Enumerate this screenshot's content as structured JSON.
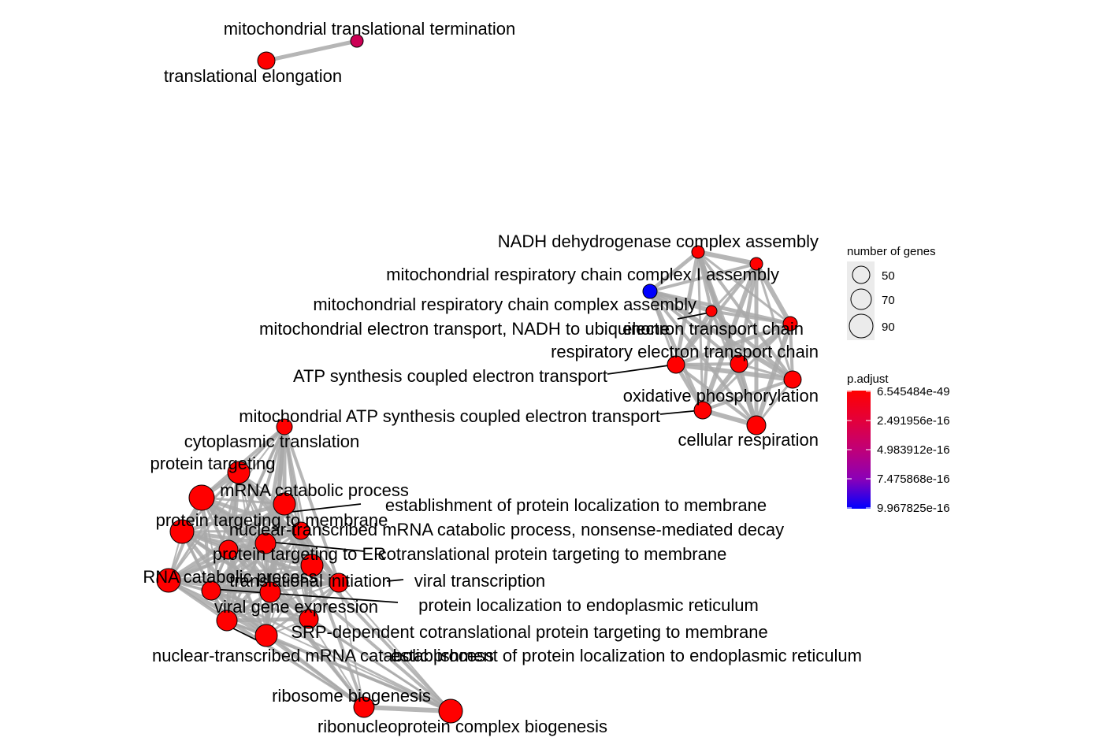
{
  "legend": {
    "size_title": "number of genes",
    "size_values": [
      "50",
      "70",
      "90"
    ],
    "color_title": "p.adjust",
    "color_ticks": [
      "6.545484e-49",
      "2.491956e-16",
      "4.983912e-16",
      "7.475868e-16",
      "9.967825e-16"
    ],
    "color_high": "#ff0000",
    "color_low": "#0000ff"
  },
  "edge_color": "#a9a9a9",
  "node_border": "#000000",
  "node_colors": {
    "red": "#ff0000",
    "purple": "#cc0055",
    "blue": "#0000ff"
  },
  "nodes": [
    {
      "id": "mt_term",
      "label": "mitochondrial translational termination",
      "color": "purple"
    },
    {
      "id": "trans_elong",
      "label": "translational elongation",
      "color": "red"
    },
    {
      "id": "nadh_deh",
      "label": "NADH dehydrogenase complex assembly",
      "color": "red"
    },
    {
      "id": "mrc_i",
      "label": "mitochondrial respiratory chain complex I assembly",
      "color": "red"
    },
    {
      "id": "mrc_asm",
      "label": "mitochondrial respiratory chain complex assembly",
      "color": "blue"
    },
    {
      "id": "mt_et_nadh",
      "label": "mitochondrial electron transport, NADH to ubiquinone",
      "color": "red"
    },
    {
      "id": "et_chain",
      "label": "electron transport chain",
      "color": "red"
    },
    {
      "id": "resp_et",
      "label": "respiratory electron transport chain",
      "color": "red"
    },
    {
      "id": "atp_et",
      "label": "ATP synthesis coupled electron transport",
      "color": "red"
    },
    {
      "id": "oxphos",
      "label": "oxidative phosphorylation",
      "color": "red"
    },
    {
      "id": "mt_atp_et",
      "label": "mitochondrial ATP synthesis coupled electron transport",
      "color": "red"
    },
    {
      "id": "cell_resp",
      "label": "cellular respiration",
      "color": "red"
    },
    {
      "id": "cyto_trans",
      "label": "cytoplasmic translation",
      "color": "red"
    },
    {
      "id": "prot_target",
      "label": "protein targeting",
      "color": "red"
    },
    {
      "id": "mrna_cat",
      "label": "mRNA catabolic process",
      "color": "red"
    },
    {
      "id": "estab_loc",
      "label": "establishment of protein localization to membrane",
      "color": "red"
    },
    {
      "id": "prot_target_mem",
      "label": "protein targeting to membrane",
      "color": "red"
    },
    {
      "id": "nmd",
      "label": "nuclear-transcribed mRNA catabolic process, nonsense-mediated decay",
      "color": "red"
    },
    {
      "id": "prot_target_er",
      "label": "protein targeting to ER",
      "color": "red"
    },
    {
      "id": "cotrans_mem",
      "label": "cotranslational protein targeting to membrane",
      "color": "red"
    },
    {
      "id": "rna_cat",
      "label": "RNA catabolic process",
      "color": "red"
    },
    {
      "id": "trans_init",
      "label": "translational initiation",
      "color": "red"
    },
    {
      "id": "viral_trans",
      "label": "viral transcription",
      "color": "red"
    },
    {
      "id": "prot_loc_er",
      "label": "protein localization to endoplasmic reticulum",
      "color": "red"
    },
    {
      "id": "viral_gene",
      "label": "viral gene expression",
      "color": "red"
    },
    {
      "id": "srp",
      "label": "SRP-dependent cotranslational protein targeting to membrane",
      "color": "red"
    },
    {
      "id": "nuc_mrna_cat",
      "label": "nuclear-transcribed mRNA catabolic process",
      "color": "red"
    },
    {
      "id": "estab_er",
      "label": "establishment of protein localization to endoplasmic reticulum",
      "color": "red"
    },
    {
      "id": "ribo_bio",
      "label": "ribosome biogenesis",
      "color": "red"
    },
    {
      "id": "rnp_bio",
      "label": "ribonucleoprotein complex biogenesis",
      "color": "red"
    }
  ]
}
